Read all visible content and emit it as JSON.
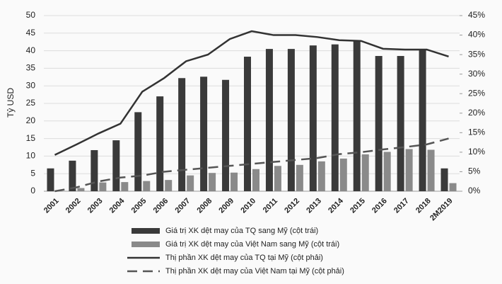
{
  "chart_data": {
    "type": "bar",
    "y_label": "Tỷ USD",
    "categories": [
      "2001",
      "2002",
      "2003",
      "2004",
      "2005",
      "2006",
      "2007",
      "2008",
      "2009",
      "2010",
      "2011",
      "2012",
      "2013",
      "2014",
      "2015",
      "2016",
      "2017",
      "2018",
      "2M2019"
    ],
    "ylim": [
      0,
      50
    ],
    "yticks": [
      0,
      5,
      10,
      15,
      20,
      25,
      30,
      35,
      40,
      45,
      50
    ],
    "y2lim": [
      0,
      45
    ],
    "y2ticks": [
      {
        "value": 0,
        "label": "0%"
      },
      {
        "value": 5,
        "label": "5%"
      },
      {
        "value": 10,
        "label": "10%"
      },
      {
        "value": 15,
        "label": "15%"
      },
      {
        "value": 20,
        "label": "20%"
      },
      {
        "value": 25,
        "label": "25%"
      },
      {
        "value": 30,
        "label": "30%"
      },
      {
        "value": 35,
        "label": "35%"
      },
      {
        "value": 40,
        "label": "40%"
      },
      {
        "value": 45,
        "label": "45%"
      }
    ],
    "grid": true,
    "series": [
      {
        "name": "Giá trị XK dệt may của TQ sang Mỹ (cột trái)",
        "kind": "bar",
        "color": "#3a3a3a",
        "values": [
          6.5,
          8.7,
          11.7,
          14.5,
          22.5,
          27,
          32.2,
          32.6,
          31.7,
          38.3,
          40.5,
          40.5,
          41.5,
          41.8,
          43,
          38.5,
          38.5,
          40.5,
          6.5
        ]
      },
      {
        "name": "Giá trị XK dệt may của Việt Nam sang Mỹ (cột trái)",
        "kind": "bar",
        "color": "#8a8a8a",
        "values": [
          0,
          0.9,
          2.5,
          2.6,
          2.9,
          3.2,
          4.5,
          5.2,
          5.3,
          6.3,
          7.2,
          7.5,
          8.5,
          9.3,
          10.5,
          11.2,
          12,
          11.8,
          2.3
        ]
      },
      {
        "name": "Thị phần XK dệt may của TQ tại Mỹ (cột phải)",
        "kind": "line",
        "axis": "y2",
        "dashed": false,
        "color": "#333333",
        "values": [
          9.3,
          12,
          14.8,
          17.3,
          25.5,
          29,
          33.3,
          35,
          39,
          41,
          40,
          40,
          39.5,
          38.7,
          38.5,
          36.5,
          36.3,
          36.3,
          34.5
        ]
      },
      {
        "name": "Thị phần XK dệt may của Việt Nam tại Mỹ (cột phải)",
        "kind": "line",
        "axis": "y2",
        "dashed": true,
        "color": "#555555",
        "values": [
          0,
          1,
          2.5,
          3.5,
          4,
          5,
          5.5,
          6,
          6.5,
          7,
          7.5,
          8,
          8.5,
          9.5,
          10,
          10.7,
          11.3,
          12,
          13.5
        ]
      }
    ]
  }
}
